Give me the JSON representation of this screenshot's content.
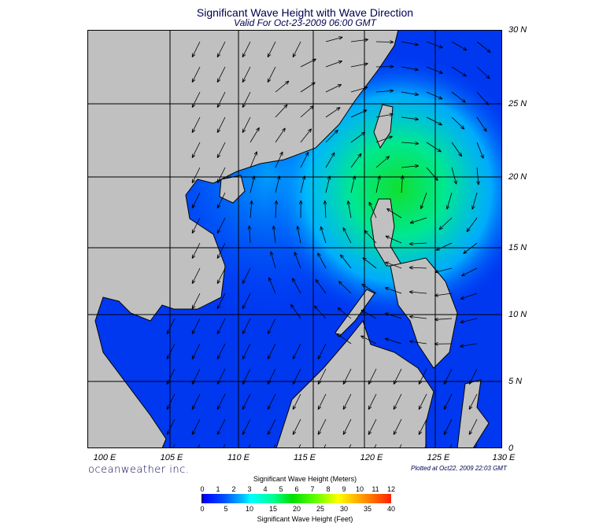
{
  "title": "Significant Wave Height with Wave Direction",
  "subtitle": "Valid For Oct-23-2009 06:00 GMT",
  "map": {
    "lat_labels": [
      "30 N",
      "25 N",
      "20 N",
      "15 N",
      "10 N",
      "5 N",
      "0"
    ],
    "lon_labels": [
      "100 E",
      "105 E",
      "110 E",
      "115 E",
      "120 E",
      "125 E",
      "130 E"
    ],
    "max_wave_area": "east of Luzon, about 19N 123E"
  },
  "footer": {
    "brand": "oceanweather inc.",
    "plotted": "Plotted at Oct22, 2009 22:03 GMT"
  },
  "colorbar": {
    "title_meters": "Significant Wave Height (Meters)",
    "title_feet": "Significant Wave Height (Feet)",
    "meters_ticks": [
      "0",
      "1",
      "2",
      "3",
      "4",
      "5",
      "6",
      "7",
      "8",
      "9",
      "10",
      "11",
      "12"
    ],
    "feet_ticks": [
      "0",
      "5",
      "10",
      "15",
      "20",
      "25",
      "30",
      "35",
      "40"
    ],
    "colors": [
      "#000000",
      "#0000ff",
      "#00c0ff",
      "#00ffff",
      "#00e000",
      "#ffff00",
      "#ffa000",
      "#ff2000"
    ]
  }
}
